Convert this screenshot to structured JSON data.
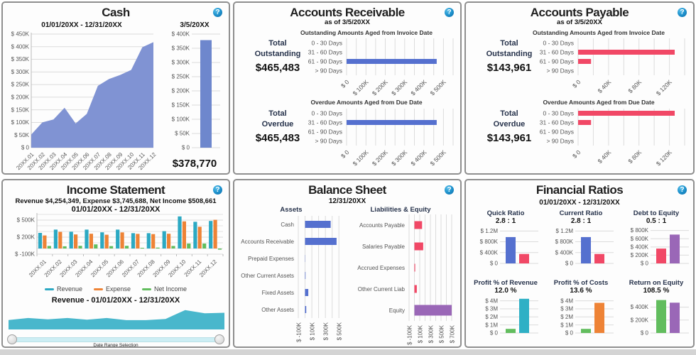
{
  "page": {
    "background": "#ffffff",
    "bottom_strip_color": "#d4d4d4",
    "panel_border_color": "#8f8f8f",
    "help_glyph": "?",
    "help_color": "#1c87c2"
  },
  "panels": {
    "cash": {
      "title": "Cash",
      "period_label": "01/01/20XX - 12/31/20XX",
      "as_of_label": "3/5/20XX",
      "total_value": "$378,770"
    },
    "accounts_receivable": {
      "title": "Accounts Receivable",
      "as_of_label": "as of 3/5/20XX",
      "outstanding": {
        "section_header": "Outstanding Amounts Aged from Invoice Date",
        "total_line1": "Total",
        "total_line2": "Outstanding",
        "amount": "$465,483"
      },
      "overdue": {
        "section_header": "Overdue Amounts Aged from Due Date",
        "total_line1": "Total",
        "total_line2": "Overdue",
        "amount": "$465,483"
      }
    },
    "accounts_payable": {
      "title": "Accounts Payable",
      "as_of_label": "as of 3/5/20XX",
      "outstanding": {
        "section_header": "Outstanding Amounts Aged from Invoice Date",
        "total_line1": "Total",
        "total_line2": "Outstanding",
        "amount": "$143,961"
      },
      "overdue": {
        "section_header": "Overdue Amounts Aged from Due Date",
        "total_line1": "Total",
        "total_line2": "Overdue",
        "amount": "$143,961"
      }
    },
    "income": {
      "title": "Income Statement",
      "summary_label": "Revenue $4,254,349, Expense $3,745,688, Net Income $508,661",
      "period_label": "01/01/20XX - 12/31/20XX",
      "legend": [
        {
          "label": "Revenue",
          "color": "#2ca9c3"
        },
        {
          "label": "Expense",
          "color": "#ee8336"
        },
        {
          "label": "Net Income",
          "color": "#62bd5e"
        }
      ],
      "selector_title": "Revenue - 01/01/20XX - 12/31/20XX",
      "selector_hint": "Date Range Selection"
    },
    "balance": {
      "title": "Balance Sheet",
      "as_of_label": "12/31/20XX",
      "assets_header": "Assets",
      "liabilities_header": "Liabilities & Equity"
    },
    "ratios": {
      "title": "Financial Ratios",
      "period_label": "01/01/20XX - 12/31/20XX",
      "cells": [
        {
          "name": "Quick Ratio",
          "value": "2.8 : 1"
        },
        {
          "name": "Current Ratio",
          "value": "2.8 : 1"
        },
        {
          "name": "Debt to Equity",
          "value": "0.5 : 1"
        },
        {
          "name": "Profit % of Revenue",
          "value": "12.0 %"
        },
        {
          "name": "Profit % of Costs",
          "value": "13.6 %"
        },
        {
          "name": "Return on Equity",
          "value": "108.5 %"
        }
      ]
    }
  },
  "chart_data": [
    {
      "id": "cash-trend",
      "type": "area",
      "title": "Cash 01/01/20XX - 12/31/20XX",
      "categories": [
        "20XX.01",
        "20XX.02",
        "20XX.03",
        "20XX.04",
        "20XX.05",
        "20XX.06",
        "20XX.07",
        "20XX.08",
        "20XX.09",
        "20XX.10",
        "20XX.11",
        "20XX.12"
      ],
      "values_thousands": [
        52,
        100,
        112,
        158,
        96,
        134,
        245,
        272,
        288,
        308,
        398,
        418
      ],
      "ylim": [
        0,
        450
      ],
      "ytick_values": [
        0,
        50,
        100,
        150,
        200,
        250,
        300,
        350,
        400,
        450
      ],
      "ytick_labels": [
        "$ 0",
        "$ 50K",
        "$ 100K",
        "$ 150K",
        "$ 200K",
        "$ 250K",
        "$ 300K",
        "$ 350K",
        "$ 400K",
        "$ 450K"
      ],
      "fill": "#8093d3"
    },
    {
      "id": "cash-current",
      "type": "bar",
      "title": "Cash as of 3/5/20XX",
      "categories": [
        "3/5/20XX"
      ],
      "values_thousands": [
        378.77
      ],
      "value_label": "$378,770",
      "ylim": [
        0,
        400
      ],
      "ytick_values": [
        0,
        50,
        100,
        150,
        200,
        250,
        300,
        350,
        400
      ],
      "ytick_labels": [
        "$ 0",
        "$ 50K",
        "$ 100K",
        "$ 150K",
        "$ 200K",
        "$ 250K",
        "$ 300K",
        "$ 350K",
        "$ 400K"
      ],
      "colors": [
        "#6e87cd"
      ]
    },
    {
      "id": "ar-outstanding",
      "type": "hbar",
      "title": "Outstanding Amounts Aged from Invoice Date",
      "categories": [
        "0 - 30 Days",
        "31 - 60 Days",
        "61 - 90 Days",
        "> 90 Days"
      ],
      "values": [
        0,
        0,
        465483,
        0
      ],
      "xlim": [
        0,
        550000
      ],
      "grid_step": 50000,
      "xtick_values": [
        0,
        100000,
        200000,
        300000,
        400000,
        500000
      ],
      "xtick_labels": [
        "$ 0",
        "$ 100K",
        "$ 200K",
        "$ 300K",
        "$ 400K",
        "$ 500K"
      ],
      "colors": [
        "#5570cf"
      ]
    },
    {
      "id": "ar-overdue",
      "type": "hbar",
      "title": "Overdue Amounts Aged from Due Date",
      "categories": [
        "0 - 30 Days",
        "31 - 60 Days",
        "61 - 90 Days",
        "> 90 Days"
      ],
      "values": [
        0,
        465483,
        0,
        0
      ],
      "xlim": [
        0,
        550000
      ],
      "grid_step": 50000,
      "xtick_values": [
        0,
        100000,
        200000,
        300000,
        400000,
        500000
      ],
      "xtick_labels": [
        "$ 0",
        "$ 100K",
        "$ 200K",
        "$ 300K",
        "$ 400K",
        "$ 500K"
      ],
      "colors": [
        "#5570cf"
      ]
    },
    {
      "id": "ap-outstanding",
      "type": "hbar",
      "title": "Outstanding Amounts Aged from Invoice Date",
      "categories": [
        "0 - 30 Days",
        "31 - 60 Days",
        "61 - 90 Days",
        "> 90 Days"
      ],
      "values": [
        0,
        126961,
        17000,
        0
      ],
      "xlim": [
        0,
        140000
      ],
      "grid_step": 20000,
      "xtick_values": [
        0,
        40000,
        80000,
        120000
      ],
      "xtick_labels": [
        "$ 0",
        "$ 40K",
        "$ 80K",
        "$ 120K"
      ],
      "colors": [
        "#f14866"
      ]
    },
    {
      "id": "ap-overdue",
      "type": "hbar",
      "title": "Overdue Amounts Aged from Due Date",
      "categories": [
        "0 - 30 Days",
        "31 - 60 Days",
        "61 - 90 Days",
        "> 90 Days"
      ],
      "values": [
        126961,
        17000,
        0,
        0
      ],
      "xlim": [
        0,
        140000
      ],
      "grid_step": 20000,
      "xtick_values": [
        0,
        40000,
        80000,
        120000
      ],
      "xtick_labels": [
        "$ 0",
        "$ 40K",
        "$ 80K",
        "$ 120K"
      ],
      "colors": [
        "#f14866"
      ]
    },
    {
      "id": "income-monthly",
      "type": "bar",
      "title": "Income Statement 01/01/20XX - 12/31/20XX",
      "categories": [
        "20XX.01",
        "20XX.02",
        "20XX.03",
        "20XX.04",
        "20XX.05",
        "20XX.06",
        "20XX.07",
        "20XX.08",
        "20XX.09",
        "20XX.10",
        "20XX.11",
        "20XX.12"
      ],
      "series": [
        {
          "name": "Revenue",
          "color": "#2ca9c3",
          "values_thousands": [
            275,
            332,
            295,
            333,
            285,
            332,
            270,
            270,
            305,
            565,
            470,
            485
          ]
        },
        {
          "name": "Expense",
          "color": "#ee8336",
          "values_thousands": [
            230,
            293,
            248,
            260,
            242,
            284,
            258,
            254,
            260,
            477,
            383,
            505
          ]
        },
        {
          "name": "Net Income",
          "color": "#62bd5e",
          "values_thousands": [
            45,
            39,
            47,
            73,
            43,
            48,
            12,
            16,
            45,
            88,
            87,
            -20
          ]
        }
      ],
      "ylim": [
        -100,
        625
      ],
      "grid_minor_step": 100,
      "ytick_values": [
        -100,
        200,
        500
      ],
      "ytick_labels": [
        "$ -100K",
        "$ 200K",
        "$ 500K"
      ]
    },
    {
      "id": "income-selector",
      "type": "area",
      "title": "Revenue - 01/01/20XX - 12/31/20XX",
      "categories": [
        "20XX.01",
        "20XX.02",
        "20XX.03",
        "20XX.04",
        "20XX.05",
        "20XX.06",
        "20XX.07",
        "20XX.08",
        "20XX.09",
        "20XX.10",
        "20XX.11",
        "20XX.12"
      ],
      "values_thousands": [
        275,
        332,
        295,
        333,
        285,
        332,
        270,
        270,
        305,
        565,
        470,
        485
      ],
      "ylim": [
        0,
        620
      ],
      "fill": "#49b7cc"
    },
    {
      "id": "balance-assets",
      "type": "hbar",
      "title": "Assets",
      "categories": [
        "Cash",
        "Accounts Receivable",
        "Prepaid Expenses",
        "Other Current Assets",
        "Fixed Assets",
        "Other Assets"
      ],
      "values": [
        378770,
        465483,
        3000,
        7000,
        48000,
        18000
      ],
      "xlim": [
        -100000,
        550000
      ],
      "grid_step": 100000,
      "xtick_values": [
        -100000,
        100000,
        300000,
        500000
      ],
      "xtick_labels": [
        "$ -100K",
        "$ 100K",
        "$ 300K",
        "$ 500K"
      ],
      "colors": [
        "#5570cf"
      ]
    },
    {
      "id": "balance-liabilities",
      "type": "hbar",
      "title": "Liabilities & Equity",
      "categories": [
        "Accounts Payable",
        "Salaries Payable",
        "Accrued Expenses",
        "Other Current Liab",
        "Equity"
      ],
      "values": [
        143961,
        165000,
        15000,
        45000,
        700000
      ],
      "xlim": [
        -100000,
        780000
      ],
      "grid_step": 100000,
      "xtick_values": [
        -100000,
        100000,
        300000,
        500000,
        700000
      ],
      "xtick_labels": [
        "$ -100K",
        "$ 100K",
        "$ 300K",
        "$ 500K",
        "$ 700K"
      ],
      "colors": [
        "#f14866",
        "#f14866",
        "#f14866",
        "#f14866",
        "#9a67b7"
      ]
    },
    {
      "id": "ratio-quick",
      "type": "bar",
      "title": "Quick Ratio 2.8 : 1",
      "values_thousands": [
        975,
        350
      ],
      "colors": [
        "#5570cf",
        "#f14866"
      ],
      "ylim": [
        0,
        1340
      ],
      "ytick_values": [
        0,
        400,
        800,
        1200
      ],
      "ytick_labels": [
        "$ 0",
        "$ 400K",
        "$ 800K",
        "$ 1.2M"
      ]
    },
    {
      "id": "ratio-current",
      "type": "bar",
      "title": "Current Ratio 2.8 : 1",
      "values_thousands": [
        975,
        350
      ],
      "colors": [
        "#5570cf",
        "#f14866"
      ],
      "ylim": [
        0,
        1340
      ],
      "ytick_values": [
        0,
        400,
        800,
        1200
      ],
      "ytick_labels": [
        "$ 0",
        "$ 400K",
        "$ 800K",
        "$ 1.2M"
      ]
    },
    {
      "id": "ratio-debt-equity",
      "type": "bar",
      "title": "Debt to Equity 0.5 : 1",
      "values_thousands": [
        360,
        700
      ],
      "colors": [
        "#f14866",
        "#9a67b7"
      ],
      "ylim": [
        0,
        880
      ],
      "ytick_values": [
        0,
        200,
        400,
        600,
        800
      ],
      "ytick_labels": [
        "$ 0",
        "$ 200K",
        "$ 400K",
        "$ 600K",
        "$ 800K"
      ]
    },
    {
      "id": "ratio-profit-revenue",
      "type": "bar",
      "title": "Profit % of Revenue 12.0 %",
      "values_thousands": [
        509,
        4254
      ],
      "colors": [
        "#62bd5e",
        "#2fb0c5"
      ],
      "ylim": [
        0,
        4500
      ],
      "ytick_values": [
        0,
        1000,
        2000,
        3000,
        4000
      ],
      "ytick_labels": [
        "$ 0",
        "$ 1M",
        "$ 2M",
        "$ 3M",
        "$ 4M"
      ]
    },
    {
      "id": "ratio-profit-costs",
      "type": "bar",
      "title": "Profit % of Costs 13.6 %",
      "values_thousands": [
        509,
        3746
      ],
      "colors": [
        "#62bd5e",
        "#ee8336"
      ],
      "ylim": [
        0,
        4500
      ],
      "ytick_values": [
        0,
        1000,
        2000,
        3000,
        4000
      ],
      "ytick_labels": [
        "$ 0",
        "$ 1M",
        "$ 2M",
        "$ 3M",
        "$ 4M"
      ]
    },
    {
      "id": "ratio-return-equity",
      "type": "bar",
      "title": "Return on Equity 108.5 %",
      "values_thousands": [
        509,
        469
      ],
      "colors": [
        "#62bd5e",
        "#9a67b7"
      ],
      "ylim": [
        0,
        560
      ],
      "ytick_values": [
        0,
        200,
        400
      ],
      "ytick_labels": [
        "$ 0",
        "$ 200K",
        "$ 400K"
      ]
    }
  ]
}
